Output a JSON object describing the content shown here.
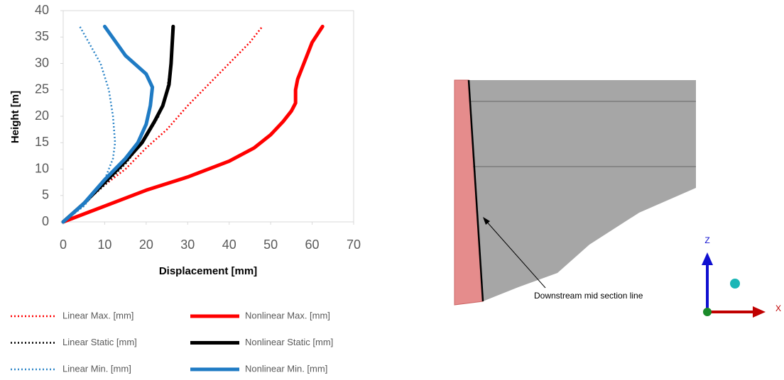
{
  "chart_data": {
    "type": "line",
    "x_label": "Displacement [mm]",
    "y_label": "Height [m]",
    "xlim": [
      0,
      70
    ],
    "xticks": [
      0,
      10,
      20,
      30,
      40,
      50,
      60,
      70
    ],
    "ylim": [
      0,
      40
    ],
    "yticks": [
      0,
      5,
      10,
      15,
      20,
      25,
      30,
      35,
      40
    ],
    "grid": false,
    "series": [
      {
        "name": "Linear Max. [mm]",
        "color": "#ff0000",
        "style": "dotted",
        "x": [
          0,
          10,
          15,
          20,
          25,
          30,
          35,
          40,
          45,
          48
        ],
        "values": [
          0,
          7,
          10,
          14,
          17.5,
          22,
          26,
          30,
          34,
          37
        ]
      },
      {
        "name": "Nonlinear Max. [mm]",
        "color": "#ff0000",
        "style": "solid",
        "x": [
          0,
          10,
          20,
          30,
          40,
          46,
          50,
          53,
          55,
          56,
          56,
          56.5,
          58,
          60,
          62.5
        ],
        "values": [
          0,
          3,
          6,
          8.5,
          11.5,
          14,
          16.5,
          19,
          21,
          22.5,
          25,
          27,
          30,
          34,
          37
        ]
      },
      {
        "name": "Linear Static [mm]",
        "color": "#000000",
        "style": "dotted",
        "x": [
          0,
          10,
          15,
          20,
          23,
          25,
          26,
          26.3
        ],
        "values": [
          0,
          7,
          11,
          16,
          20,
          25,
          30,
          37
        ]
      },
      {
        "name": "Nonlinear Static [mm]",
        "color": "#000000",
        "style": "solid",
        "x": [
          0,
          5,
          10,
          15,
          19,
          22,
          24,
          25.5,
          26,
          26.5
        ],
        "values": [
          0,
          3.5,
          7.5,
          11.5,
          15,
          19,
          22,
          26,
          30,
          37
        ]
      },
      {
        "name": "Linear Min. [mm]",
        "color": "#2e86c8",
        "style": "dotted",
        "x": [
          0,
          5,
          10,
          12,
          12.5,
          12,
          11,
          9,
          4
        ],
        "values": [
          0,
          3,
          8,
          12,
          15,
          20,
          25,
          30,
          37
        ]
      },
      {
        "name": "Nonlinear Min. [mm]",
        "color": "#1f7bc4",
        "style": "solid",
        "x": [
          0,
          5,
          10,
          15,
          18,
          20,
          21,
          21.5,
          20,
          15,
          10
        ],
        "values": [
          0,
          3.5,
          8,
          12,
          15,
          18.5,
          22,
          25.5,
          28,
          31.5,
          37
        ]
      }
    ]
  },
  "diagram": {
    "annotation": "Downstream mid section line",
    "axis_labels": [
      "Z",
      "X"
    ]
  }
}
